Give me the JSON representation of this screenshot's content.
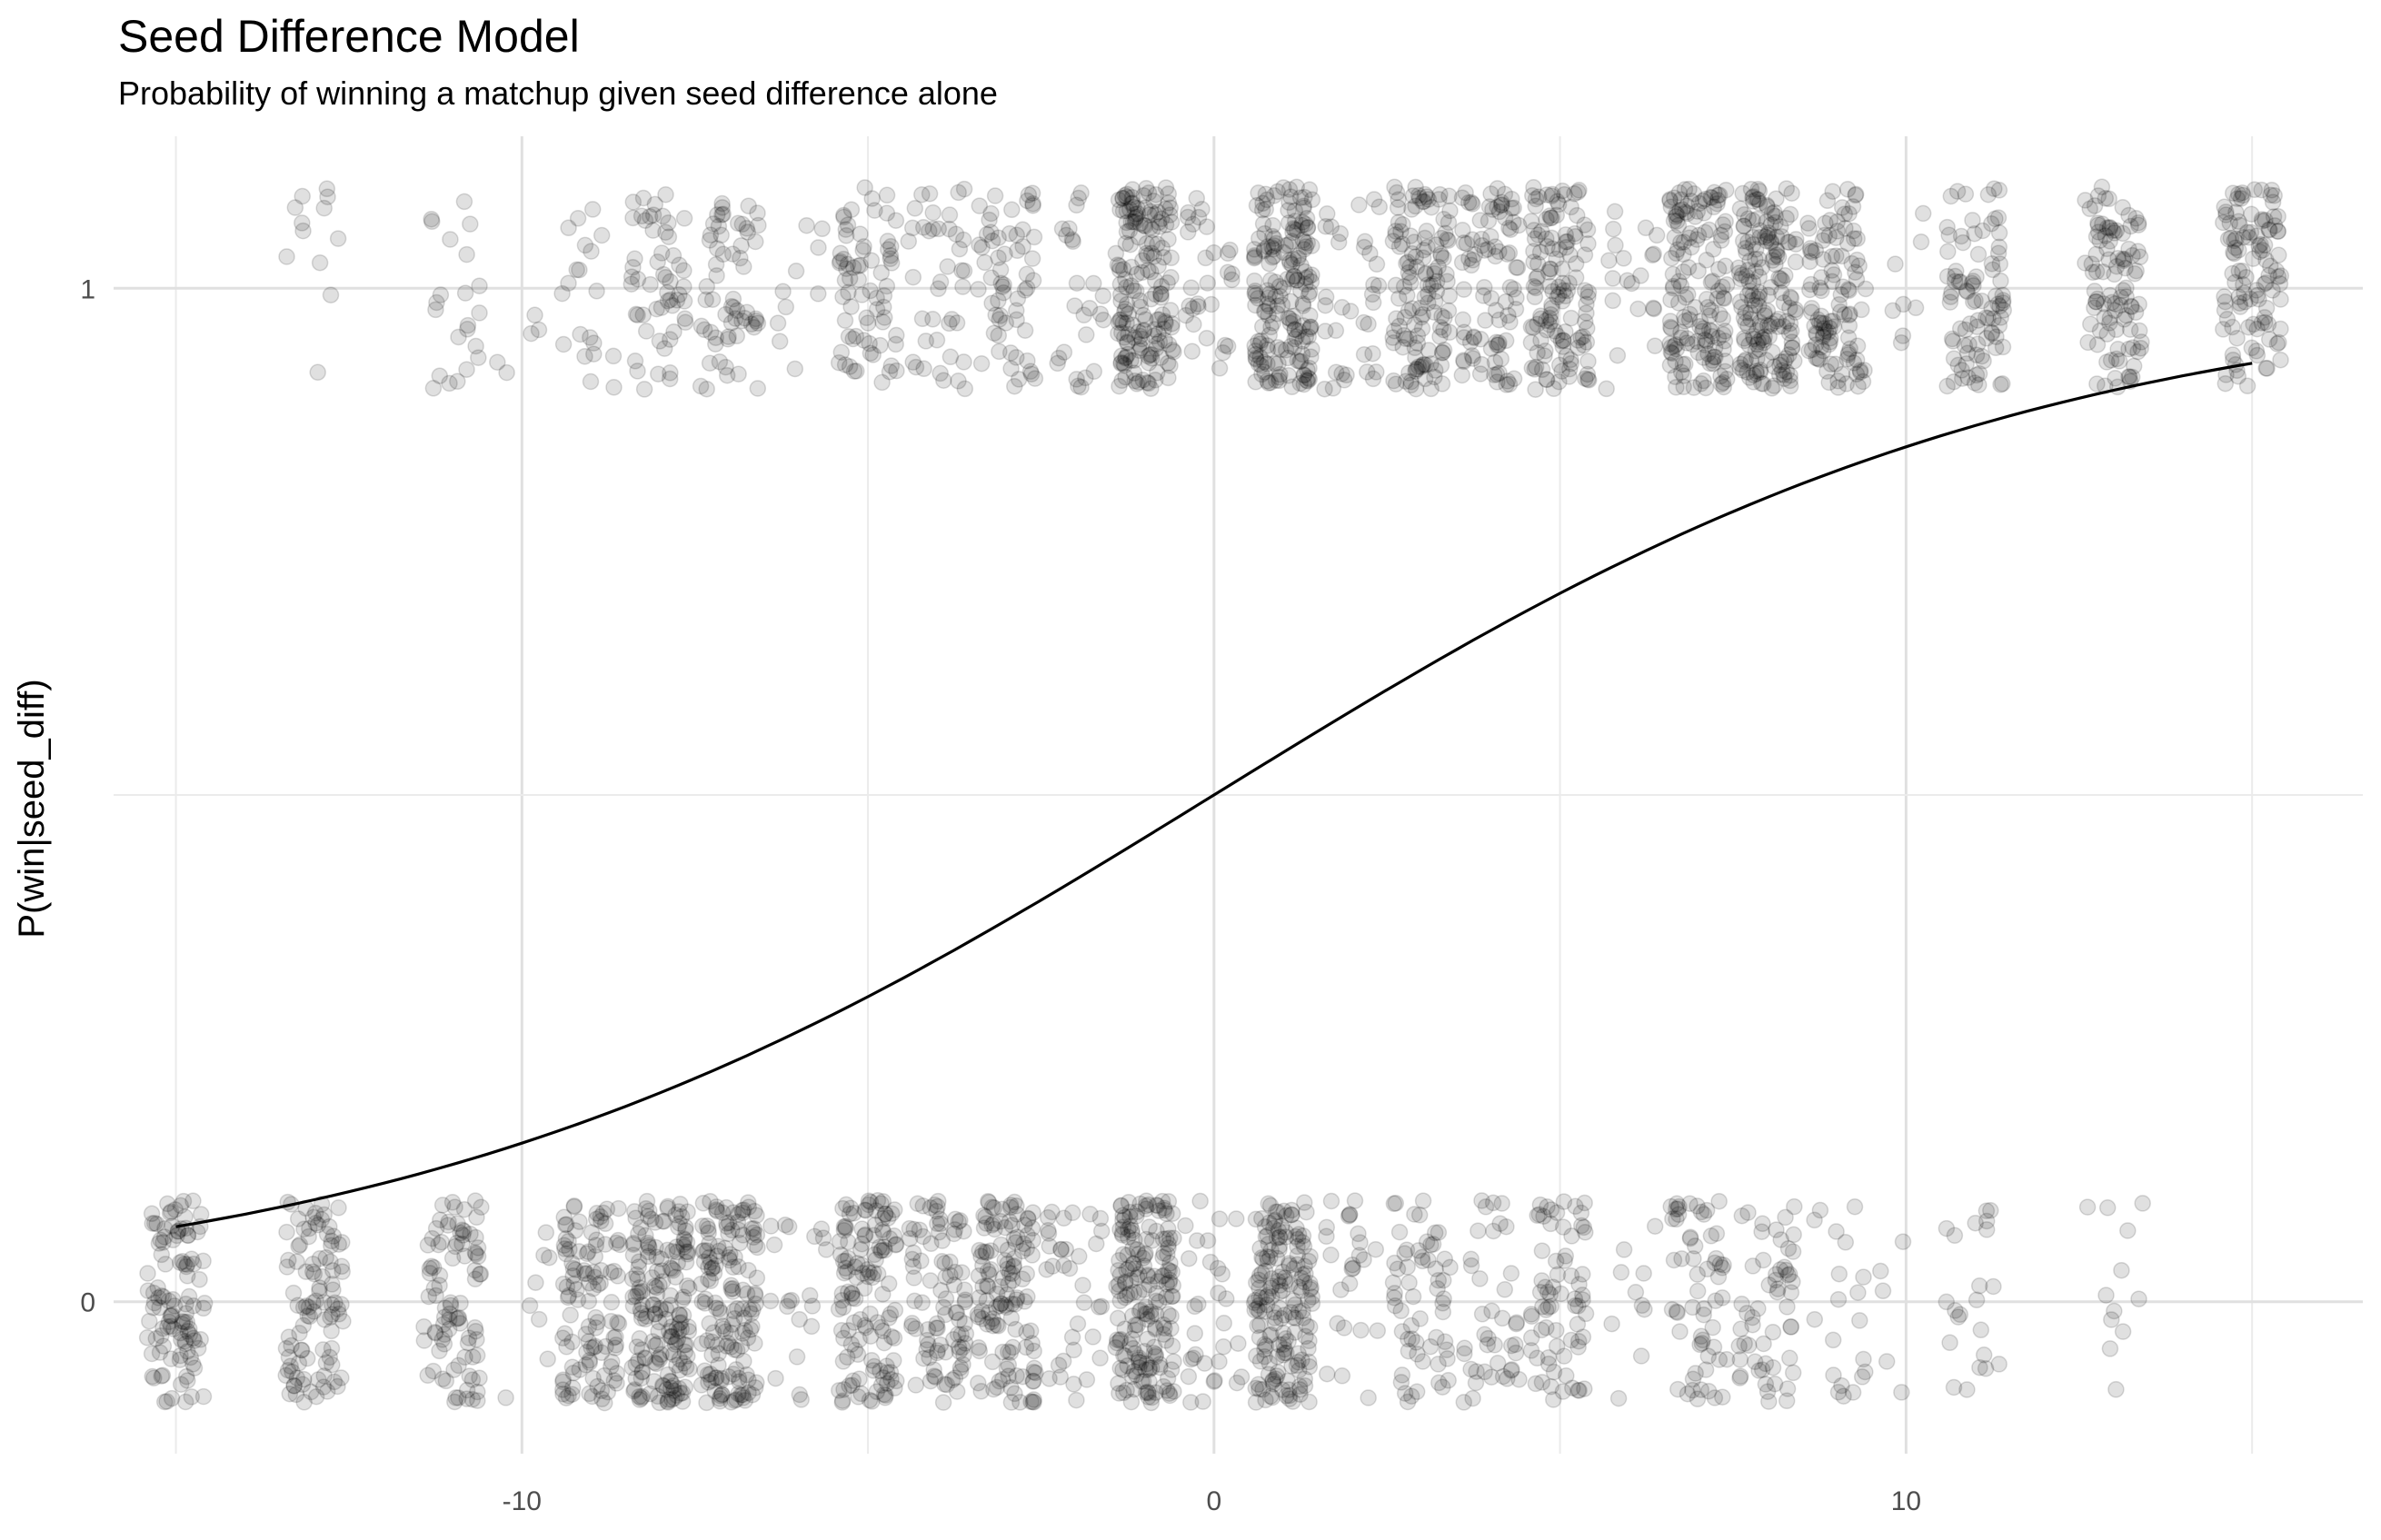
{
  "chart_data": {
    "type": "scatter",
    "title": "Seed Difference Model",
    "subtitle": "Probability of winning a matchup given seed difference alone",
    "xlabel": "",
    "ylabel": "P(win|seed_diff)",
    "xlim": [
      -15.9,
      16.6
    ],
    "ylim": [
      -0.15,
      1.15
    ],
    "x_ticks": [
      -10,
      0,
      10
    ],
    "x_tick_labels": [
      "-10",
      "0",
      "10"
    ],
    "y_ticks": [
      0,
      1
    ],
    "y_tick_labels": [
      "0",
      "1"
    ],
    "grid": true,
    "point_color": "#000000",
    "point_alpha": 0.12,
    "line_color": "#000000",
    "series": [
      {
        "type": "jitter-points",
        "outcome_counts": [
          {
            "x": -15,
            "wins": 0,
            "losses": 110
          },
          {
            "x": -13,
            "wins": 12,
            "losses": 100
          },
          {
            "x": -11,
            "wins": 22,
            "losses": 90
          },
          {
            "x": -10,
            "wins": 5,
            "losses": 8
          },
          {
            "x": -9,
            "wins": 20,
            "losses": 110
          },
          {
            "x": -8,
            "wins": 55,
            "losses": 175
          },
          {
            "x": -7,
            "wins": 60,
            "losses": 150
          },
          {
            "x": -6,
            "wins": 10,
            "losses": 20
          },
          {
            "x": -5,
            "wins": 70,
            "losses": 130
          },
          {
            "x": -4,
            "wins": 40,
            "losses": 90
          },
          {
            "x": -3,
            "wins": 60,
            "losses": 130
          },
          {
            "x": -2,
            "wins": 25,
            "losses": 35
          },
          {
            "x": -1,
            "wins": 175,
            "losses": 185
          },
          {
            "x": 0,
            "wins": 30,
            "losses": 30
          },
          {
            "x": 1,
            "wins": 185,
            "losses": 175
          },
          {
            "x": 2,
            "wins": 35,
            "losses": 25
          },
          {
            "x": 3,
            "wins": 130,
            "losses": 60
          },
          {
            "x": 4,
            "wins": 90,
            "losses": 40
          },
          {
            "x": 5,
            "wins": 130,
            "losses": 70
          },
          {
            "x": 6,
            "wins": 20,
            "losses": 10
          },
          {
            "x": 7,
            "wins": 150,
            "losses": 60
          },
          {
            "x": 8,
            "wins": 175,
            "losses": 55
          },
          {
            "x": 9,
            "wins": 110,
            "losses": 20
          },
          {
            "x": 10,
            "wins": 8,
            "losses": 5
          },
          {
            "x": 11,
            "wins": 90,
            "losses": 22
          },
          {
            "x": 13,
            "wins": 100,
            "losses": 12
          },
          {
            "x": 15,
            "wins": 110,
            "losses": 0
          }
        ],
        "jitter_x": 0.42,
        "jitter_y": 0.1
      },
      {
        "type": "line",
        "x": [
          -15,
          -14,
          -13,
          -12,
          -11,
          -10,
          -9,
          -8,
          -7,
          -6,
          -5,
          -4,
          -3,
          -2,
          -1,
          0,
          1,
          2,
          3,
          4,
          5,
          6,
          7,
          8,
          9,
          10,
          11,
          12,
          13,
          14,
          15
        ],
        "y": [
          0.075,
          0.088,
          0.104,
          0.122,
          0.143,
          0.167,
          0.194,
          0.224,
          0.257,
          0.294,
          0.333,
          0.375,
          0.419,
          0.463,
          0.509,
          0.5,
          0.545,
          0.59,
          0.633,
          0.674,
          0.713,
          0.748,
          0.781,
          0.81,
          0.836,
          0.859,
          0.878,
          0.896,
          0.91,
          0.923,
          0.925
        ]
      }
    ]
  }
}
